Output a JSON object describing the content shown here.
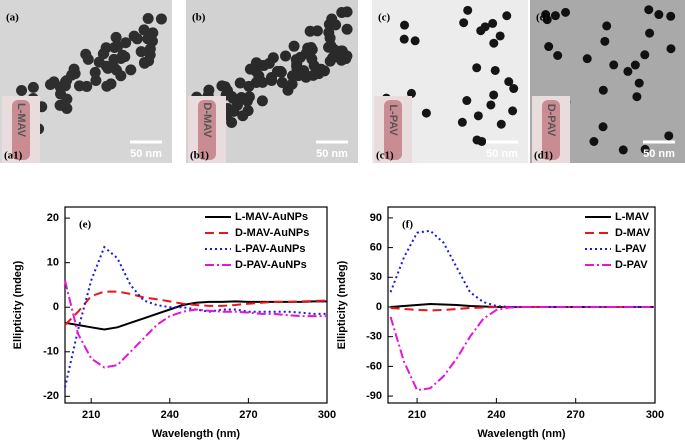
{
  "images": [
    {
      "label": "(a)",
      "inset_label": "(a1)",
      "vial_label": "L-MAV",
      "scale_bar": "50 nm"
    },
    {
      "label": "(b)",
      "inset_label": "(b1)",
      "vial_label": "D-MAV",
      "scale_bar": "50 nm"
    },
    {
      "label": "(c)",
      "inset_label": "(c1)",
      "vial_label": "L-PAV",
      "scale_bar": "50 nm"
    },
    {
      "label": "(d)",
      "inset_label": "(d1)",
      "vial_label": "D-PAV",
      "scale_bar": "50 nm"
    }
  ],
  "chart_data": [
    {
      "type": "line",
      "annotation": "(e)",
      "x_label": "Wavelength (nm)",
      "y_label": "Ellipticity (mdeg)",
      "x": [
        200,
        205,
        210,
        215,
        220,
        225,
        230,
        235,
        240,
        245,
        250,
        255,
        260,
        265,
        270,
        275,
        280,
        285,
        290,
        295,
        300
      ],
      "xlim": [
        200,
        300
      ],
      "ylim": [
        -21.5,
        22.5
      ],
      "xticks": [
        210,
        240,
        270,
        300
      ],
      "yticks": [
        -20,
        -10,
        0,
        10,
        20
      ],
      "legend": "upper right",
      "series": [
        {
          "name": "L-MAV-AuNPs",
          "color": "#000000",
          "line_style": "solid",
          "values": [
            -3.5,
            -4,
            -4.5,
            -5,
            -4.5,
            -3.5,
            -2.5,
            -1.5,
            -0.5,
            0.5,
            1,
            1.2,
            1.2,
            1.3,
            1.2,
            1.2,
            1.2,
            1.2,
            1.2,
            1.3,
            1.3
          ]
        },
        {
          "name": "D-MAV-AuNPs",
          "color": "#e8161b",
          "line_style": "dashed",
          "values": [
            -4,
            -1,
            2.5,
            3.5,
            3.5,
            3,
            2.2,
            1.8,
            1.3,
            0.8,
            0.5,
            0.3,
            0.3,
            0.5,
            0.8,
            1,
            1.2,
            1.2,
            1.3,
            1.4,
            1.5
          ]
        },
        {
          "name": "L-PAV-AuNPs",
          "color": "#1a1adb",
          "line_style": "dotted",
          "values": [
            -18,
            -5,
            6,
            13.5,
            11,
            5,
            1.5,
            0.5,
            0,
            0,
            -0.5,
            -1,
            -0.5,
            -0.5,
            -1,
            -1,
            -1,
            -1,
            -1.2,
            -1.5,
            -1.5
          ]
        },
        {
          "name": "D-PAV-AuNPs",
          "color": "#e614d8",
          "line_style": "dashdot",
          "values": [
            6,
            -6,
            -11.5,
            -13.5,
            -13,
            -10,
            -7,
            -4,
            -2,
            -1,
            -0.5,
            -0.8,
            -1,
            -1,
            -1.2,
            -1.5,
            -1.5,
            -1.8,
            -2,
            -2,
            -2
          ]
        }
      ]
    },
    {
      "type": "line",
      "annotation": "(f)",
      "x_label": "Wavelength (nm)",
      "y_label": "Ellipticity (mdeg)",
      "x": [
        200,
        205,
        210,
        215,
        220,
        225,
        230,
        235,
        240,
        245,
        250,
        255,
        260,
        265,
        270,
        275,
        280,
        285,
        290,
        295,
        300
      ],
      "xlim": [
        199,
        300
      ],
      "ylim": [
        -97,
        101
      ],
      "xticks": [
        210,
        240,
        270,
        300
      ],
      "yticks": [
        -90,
        -60,
        -30,
        0,
        30,
        60,
        90
      ],
      "legend": "upper right",
      "series": [
        {
          "name": "L-MAV",
          "color": "#000000",
          "line_style": "solid",
          "values": [
            0,
            1,
            2,
            3,
            2.5,
            2,
            1,
            0.5,
            0,
            0,
            0,
            0,
            0,
            0,
            0,
            0,
            0,
            0,
            0,
            0,
            0
          ]
        },
        {
          "name": "D-MAV",
          "color": "#e8161b",
          "line_style": "dashed",
          "values": [
            -1,
            -2,
            -3,
            -3.5,
            -3,
            -2,
            -1,
            -0.5,
            0,
            0,
            0,
            0,
            0,
            0,
            0,
            0,
            0,
            0,
            0,
            0,
            0
          ]
        },
        {
          "name": "L-PAV",
          "color": "#1a1adb",
          "line_style": "dotted",
          "values": [
            15,
            50,
            75,
            77,
            65,
            40,
            15,
            5,
            1,
            0,
            0,
            0,
            0,
            0,
            0,
            0,
            0,
            0,
            0,
            0,
            0
          ]
        },
        {
          "name": "D-PAV",
          "color": "#e614d8",
          "line_style": "dashdot",
          "values": [
            -10,
            -55,
            -84,
            -82,
            -70,
            -52,
            -30,
            -12,
            -3,
            -0.5,
            0,
            0,
            0,
            0,
            0,
            0,
            0,
            0,
            0,
            0,
            0
          ]
        }
      ]
    }
  ]
}
